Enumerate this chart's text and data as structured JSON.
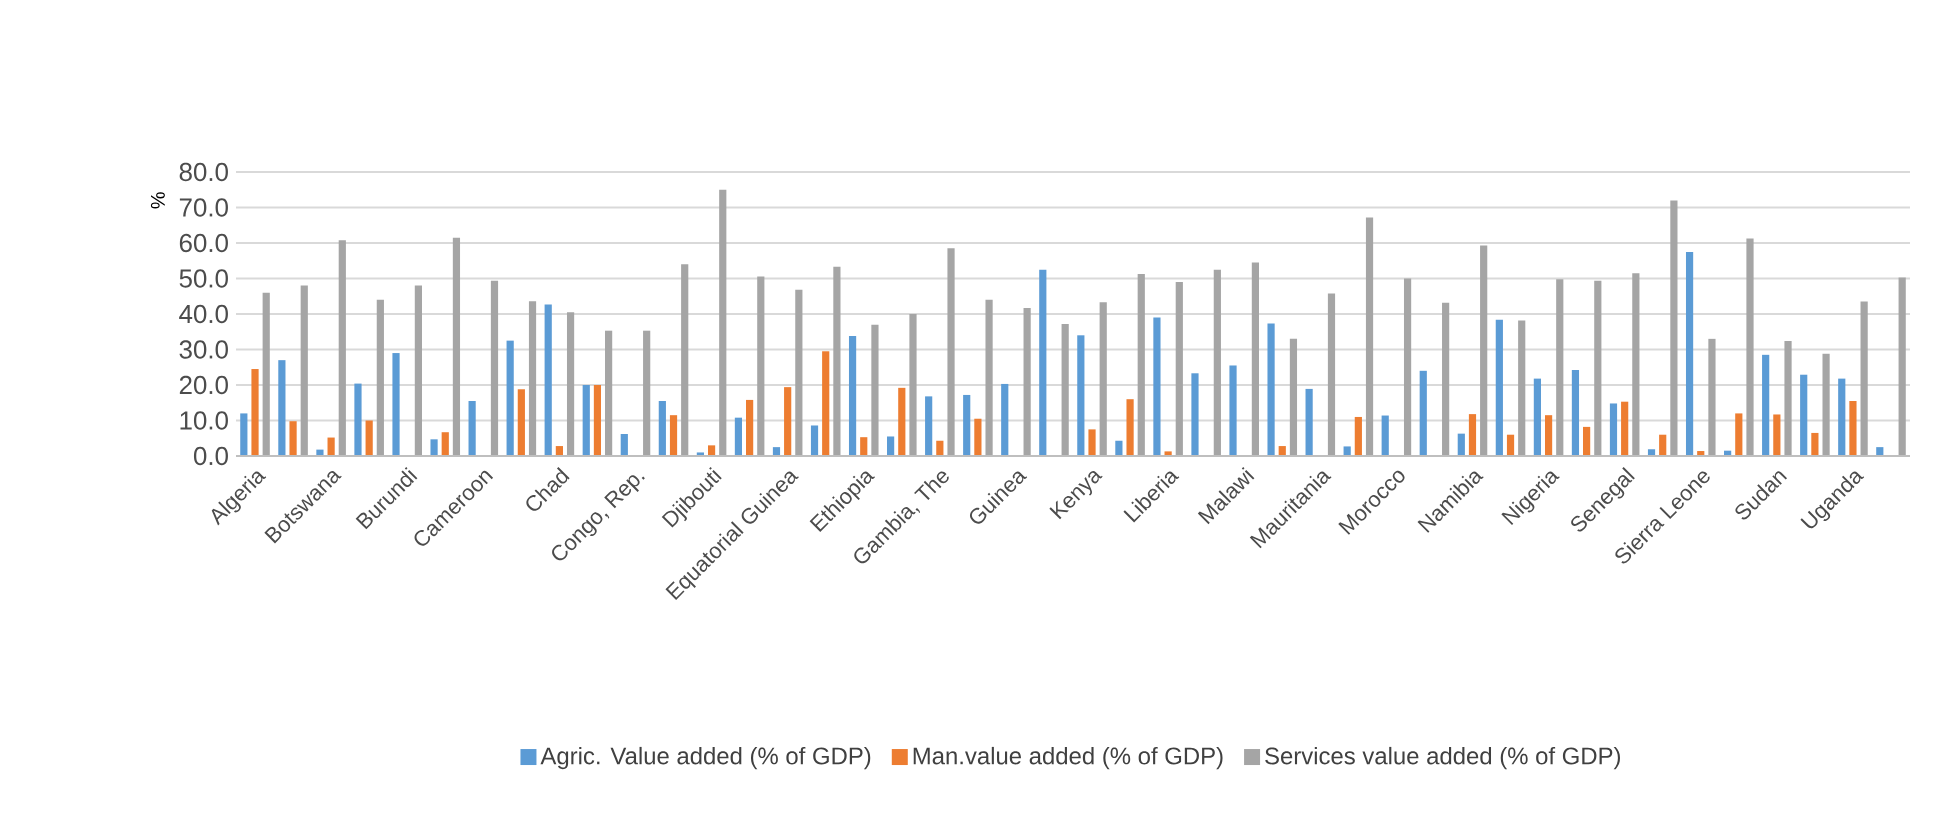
{
  "chart_data": {
    "type": "bar",
    "ylabel": "%",
    "categories": [
      "Algeria",
      null,
      "Botswana",
      null,
      "Burundi",
      null,
      "Cameroon",
      null,
      "Chad",
      null,
      "Congo, Rep.",
      null,
      "Djibouti",
      null,
      "Equatorial Guinea",
      null,
      "Ethiopia",
      null,
      "Gambia, The",
      null,
      "Guinea",
      null,
      "Kenya",
      null,
      "Liberia",
      null,
      "Malawi",
      null,
      "Mauritania",
      null,
      "Morocco",
      null,
      "Namibia",
      null,
      "Nigeria",
      null,
      "Senegal",
      null,
      "Sierra Leone",
      null,
      "Sudan",
      null,
      "Uganda",
      null
    ],
    "series": [
      {
        "name": "Agric. Value added (% of GDP)",
        "color": "#5b9bd5",
        "values": [
          12.0,
          27.0,
          1.8,
          20.4,
          29.0,
          4.7,
          15.5,
          32.5,
          42.7,
          20.0,
          6.2,
          15.5,
          1.0,
          10.8,
          2.5,
          8.6,
          33.8,
          5.5,
          16.8,
          17.2,
          20.3,
          52.5,
          34.0,
          4.3,
          39.0,
          23.3,
          25.5,
          37.3,
          18.9,
          2.7,
          11.4,
          24.0,
          6.3,
          38.4,
          21.8,
          24.2,
          14.8,
          1.9,
          57.5,
          1.5,
          28.5,
          22.9,
          21.8,
          2.5
        ]
      },
      {
        "name": "Man.value added (% of GDP)",
        "color": "#ed7d31",
        "values": [
          24.5,
          9.8,
          5.2,
          10.0,
          null,
          6.7,
          null,
          18.8,
          2.8,
          20.0,
          null,
          11.5,
          3.0,
          15.8,
          19.4,
          29.5,
          5.3,
          19.2,
          4.3,
          10.5,
          null,
          null,
          7.5,
          16.0,
          1.3,
          null,
          null,
          2.8,
          null,
          11.0,
          null,
          null,
          11.8,
          6.0,
          11.5,
          8.2,
          15.3,
          6.0,
          1.4,
          12.0,
          11.7,
          6.5,
          15.5,
          null
        ]
      },
      {
        "name": "Services value added (% of GDP)",
        "color": "#a5a5a5",
        "values": [
          46.0,
          48.0,
          60.8,
          44.0,
          48.0,
          61.5,
          49.4,
          43.6,
          40.5,
          35.3,
          35.3,
          54.0,
          75.0,
          50.6,
          46.8,
          53.3,
          37.0,
          40.0,
          58.5,
          44.0,
          41.7,
          37.2,
          43.3,
          51.3,
          49.0,
          52.5,
          54.5,
          33.0,
          45.8,
          67.2,
          50.0,
          43.2,
          59.3,
          38.2,
          49.8,
          49.4,
          51.5,
          72.0,
          33.0,
          61.3,
          32.4,
          28.8,
          43.5,
          50.3
        ]
      }
    ],
    "ylim": [
      0,
      80
    ],
    "yticks": [
      {
        "value": 0,
        "label": "0.0"
      },
      {
        "value": 10,
        "label": "10.0"
      },
      {
        "value": 20,
        "label": "20.0"
      },
      {
        "value": 30,
        "label": "30.0"
      },
      {
        "value": 40,
        "label": "40.0"
      },
      {
        "value": 50,
        "label": "50.0"
      },
      {
        "value": 60,
        "label": "60.0"
      },
      {
        "value": 70,
        "label": "70.0"
      },
      {
        "value": 80,
        "label": "80.0"
      }
    ],
    "grid": "y",
    "legend": "bottom"
  }
}
